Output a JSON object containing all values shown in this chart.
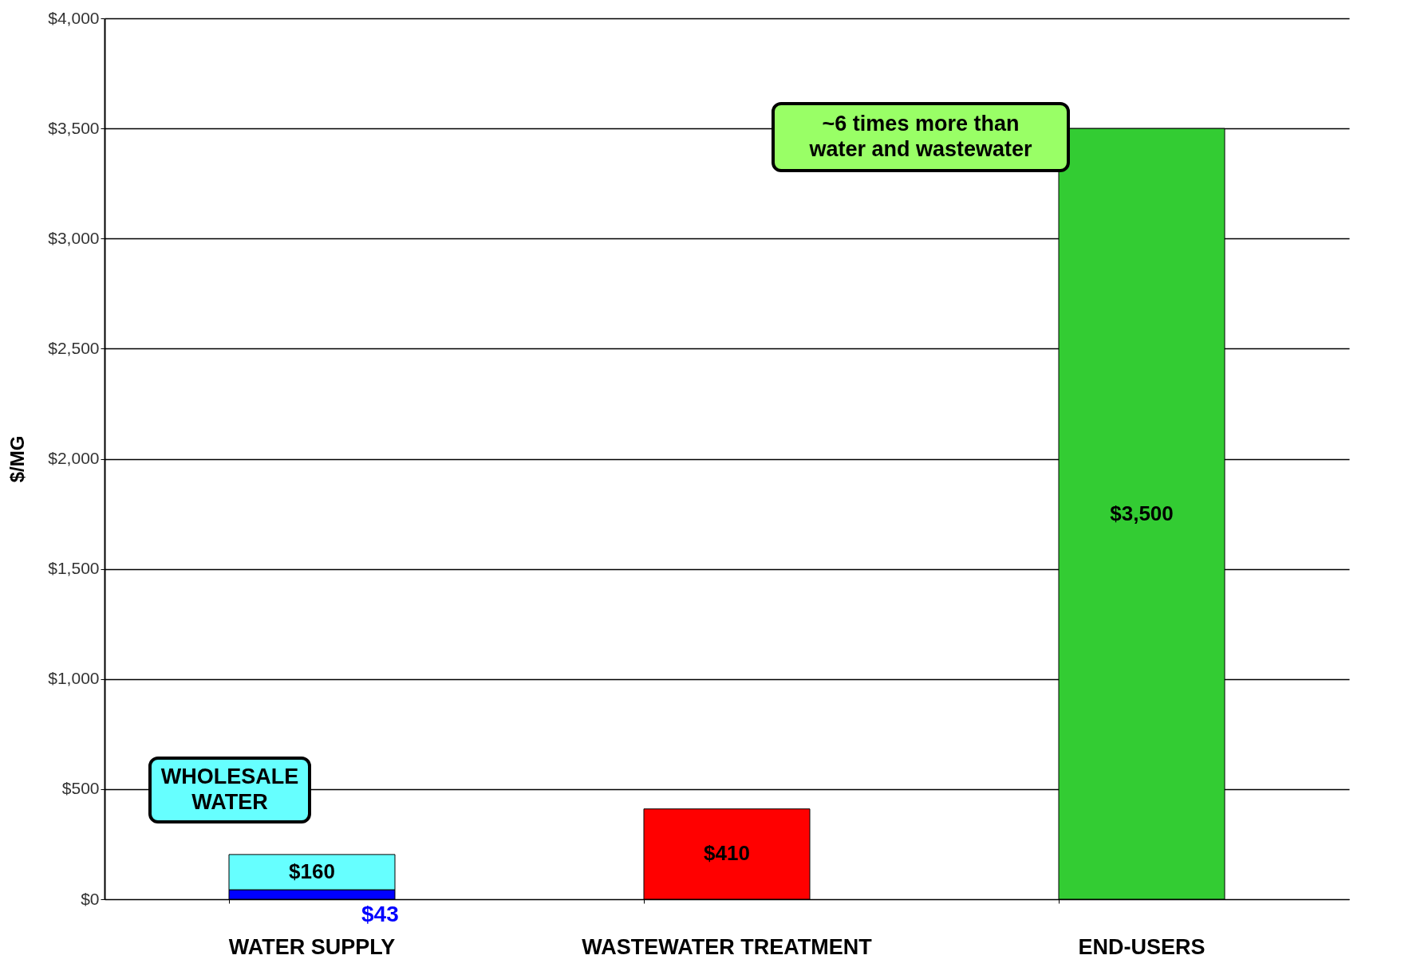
{
  "chart_data": {
    "type": "bar",
    "stacked": true,
    "ylabel": "$/MG",
    "categories": [
      "WATER SUPPLY",
      "WASTEWATER TREATMENT",
      "END-USERS"
    ],
    "series": [
      {
        "colors": [
          "#0000ff",
          null,
          null
        ],
        "values": [
          43,
          null,
          null
        ],
        "value_labels": [
          "$43",
          null,
          null
        ]
      },
      {
        "colors": [
          "#66ffff",
          "#ff0000",
          "#33cc33"
        ],
        "values": [
          160,
          410,
          3500
        ],
        "value_labels": [
          "$160",
          "$410",
          "$3,500"
        ]
      }
    ],
    "ylim": [
      0,
      4000
    ],
    "yticks": [
      {
        "value": 0,
        "label": "$0"
      },
      {
        "value": 500,
        "label": "$500"
      },
      {
        "value": 1000,
        "label": "$1,000"
      },
      {
        "value": 1500,
        "label": "$1,500"
      },
      {
        "value": 2000,
        "label": "$2,000"
      },
      {
        "value": 2500,
        "label": "$2,500"
      },
      {
        "value": 3000,
        "label": "$3,000"
      },
      {
        "value": 3500,
        "label": "$3,500"
      },
      {
        "value": 4000,
        "label": "$4,000"
      }
    ],
    "grid": "y",
    "annotations": [
      "WHOLESALE WATER",
      "~6 times more than water and wastewater"
    ]
  }
}
